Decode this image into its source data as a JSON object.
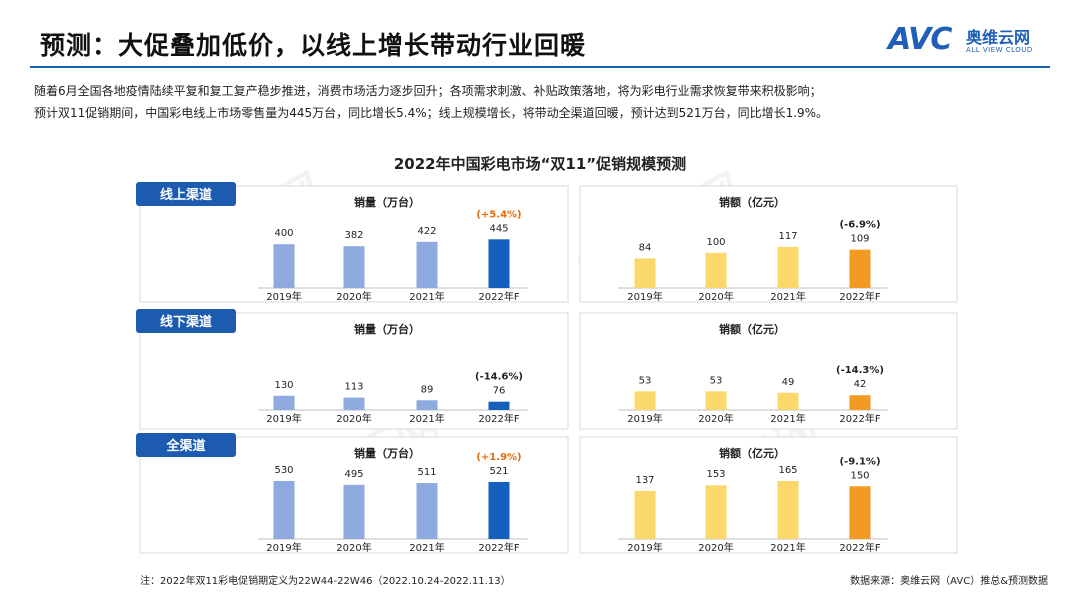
{
  "header": {
    "title": "预测：大促叠加低价，以线上增长带动行业回暖",
    "logo_mark": "AVC",
    "logo_cn": "奥维云网",
    "logo_en": "ALL VIEW CLOUD"
  },
  "intro": {
    "line1": "随着6月全国各地疫情陆续平复和复工复产稳步推进，消费市场活力逐步回升；各项需求刺激、补贴政策落地，将为彩电行业需求恢复带来积极影响；",
    "line2": "预计双11促销期间，中国彩电线上市场零售量为445万台，同比增长5.4%；线上规模增长，将带动全渠道回暖，预计达到521万台，同比增长1.9%。"
  },
  "watermark": {
    "text": "奥维云网"
  },
  "colors": {
    "vol_hist": "#8eaadf",
    "vol_fcst": "#1560bd",
    "amt_hist": "#fbd86b",
    "amt_fcst": "#f39a22",
    "badge": "#1d5bb0",
    "growth_pos": "#e46c0a",
    "growth_neg": "#222222"
  },
  "chart_data": {
    "type": "bar",
    "title": "2022年中国彩电市场“双11”促销规模预测",
    "categories": [
      "2019年",
      "2020年",
      "2021年",
      "2022年F"
    ],
    "panels": [
      {
        "channel": "线上渠道",
        "volume": {
          "label": "销量（万台）",
          "values": [
            400,
            382,
            422,
            445
          ],
          "growth": "(+5.4%)",
          "growth_positive": true
        },
        "amount": {
          "label": "销额（亿元）",
          "values": [
            84,
            100,
            117,
            109
          ],
          "growth": "(-6.9%)",
          "growth_positive": false
        }
      },
      {
        "channel": "线下渠道",
        "volume": {
          "label": "销量（万台）",
          "values": [
            130,
            113,
            89,
            76
          ],
          "growth": "(-14.6%)",
          "growth_positive": false
        },
        "amount": {
          "label": "销额（亿元）",
          "values": [
            53,
            53,
            49,
            42
          ],
          "growth": "(-14.3%)",
          "growth_positive": false
        }
      },
      {
        "channel": "全渠道",
        "volume": {
          "label": "销量（万台）",
          "values": [
            530,
            495,
            511,
            521
          ],
          "growth": "(+1.9%)",
          "growth_positive": true
        },
        "amount": {
          "label": "销额（亿元）",
          "values": [
            137,
            153,
            165,
            150
          ],
          "growth": "(-9.1%)",
          "growth_positive": false
        }
      }
    ]
  },
  "footer": {
    "note": "注：2022年双11彩电促销期定义为22W44-22W46（2022.10.24-2022.11.13）",
    "source": "数据来源：奥维云网（AVC）推总&预测数据"
  }
}
